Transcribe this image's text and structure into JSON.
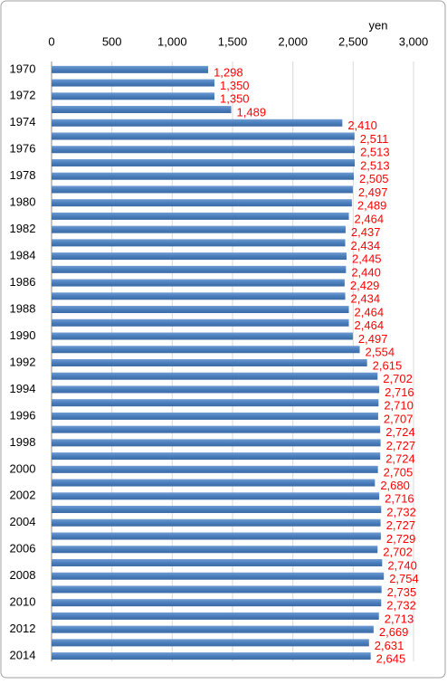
{
  "chart_data": {
    "type": "bar",
    "orientation": "horizontal",
    "x_axis_label": "yen",
    "categories": [
      "1970",
      null,
      "1972",
      null,
      "1974",
      null,
      "1976",
      null,
      "1978",
      null,
      "1980",
      null,
      "1982",
      null,
      "1984",
      null,
      "1986",
      null,
      "1988",
      null,
      "1990",
      null,
      "1992",
      null,
      "1994",
      null,
      "1996",
      null,
      "1998",
      null,
      "2000",
      null,
      "2002",
      null,
      "2004",
      null,
      "2006",
      null,
      "2008",
      null,
      "2010",
      null,
      "2012",
      null,
      "2014"
    ],
    "values": [
      1298,
      1350,
      1350,
      1489,
      2410,
      2511,
      2513,
      2513,
      2505,
      2497,
      2489,
      2464,
      2437,
      2434,
      2445,
      2440,
      2429,
      2434,
      2464,
      2464,
      2497,
      2554,
      2615,
      2702,
      2716,
      2710,
      2707,
      2724,
      2727,
      2724,
      2705,
      2680,
      2716,
      2732,
      2727,
      2729,
      2702,
      2740,
      2754,
      2735,
      2732,
      2713,
      2669,
      2631,
      2645
    ],
    "value_labels": [
      "1,298",
      "1,350",
      "1,350",
      "1,489",
      "2,410",
      "2,511",
      "2,513",
      "2,513",
      "2,505",
      "2,497",
      "2,489",
      "2,464",
      "2,437",
      "2,434",
      "2,445",
      "2,440",
      "2,429",
      "2,434",
      "2,464",
      "2,464",
      "2,497",
      "2,554",
      "2,615",
      "2,702",
      "2,716",
      "2,710",
      "2,707",
      "2,724",
      "2,727",
      "2,724",
      "2,705",
      "2,680",
      "2,716",
      "2,732",
      "2,727",
      "2,729",
      "2,702",
      "2,740",
      "2,754",
      "2,735",
      "2,732",
      "2,713",
      "2,669",
      "2,631",
      "2,645"
    ],
    "color": "#4a7ebb",
    "label_color": "#ff0000",
    "xlim": [
      0,
      3000
    ],
    "xticks": [
      0,
      500,
      {
        "value": 1000,
        "label": "1,000"
      },
      {
        "value": 1500,
        "label": "1,500"
      },
      {
        "value": 2000,
        "label": "2,000"
      },
      {
        "value": 2500,
        "label": "2,500"
      },
      {
        "value": 3000,
        "label": "3,000"
      }
    ],
    "grid": true
  }
}
